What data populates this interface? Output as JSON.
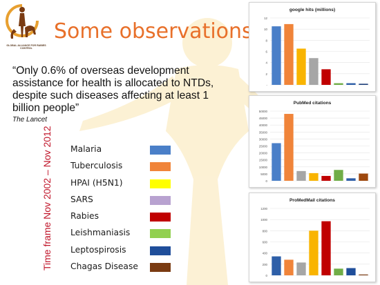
{
  "slide": {
    "title": "Some observations",
    "quote": "“Only 0.6% of overseas development assistance for health is allocated to NTDs, despite such diseases affecting at least 1 billion people”",
    "source": "The Lancet",
    "timeframe": "Time frame Nov 2002 – Nov 2012",
    "logo_text": "GLOBAL ALLIANCE FOR RABIES CONTROL"
  },
  "legend": [
    {
      "label": "Malaria",
      "color": "#4a7fc8"
    },
    {
      "label": "Tuberculosis",
      "color": "#f0843a"
    },
    {
      "label": "HPAI (H5N1)",
      "color": "#ffff00"
    },
    {
      "label": "SARS",
      "color": "#b8a2d0"
    },
    {
      "label": "Rabies",
      "color": "#c00000"
    },
    {
      "label": "Leishmaniasis",
      "color": "#92d050"
    },
    {
      "label": "Leptospirosis",
      "color": "#1f4e9a"
    },
    {
      "label": "Chagas Disease",
      "color": "#7a3b12"
    }
  ],
  "chart_data": [
    {
      "type": "bar",
      "title": "google hits (millions)",
      "categories": [
        "Malaria",
        "Tuberculosis",
        "HPAI (H5N1)",
        "SARS",
        "Rabies",
        "Leishmaniasis",
        "Leptospirosis",
        "Chagas Disease"
      ],
      "values": [
        10.5,
        10.9,
        6.5,
        4.8,
        2.8,
        0.3,
        0.3,
        0.2
      ],
      "colors": [
        "#4a7fc8",
        "#f0843a",
        "#f9b400",
        "#a6a6a6",
        "#c00000",
        "#70ad47",
        "#2e5fa8",
        "#1f3f7a"
      ],
      "yticks": [
        "-",
        "2",
        "4",
        "6",
        "8",
        "10",
        "12"
      ],
      "ylim": [
        0,
        12
      ],
      "grid": true
    },
    {
      "type": "bar",
      "title": "PubMed citations",
      "categories": [
        "Malaria",
        "Tuberculosis",
        "HPAI (H5N1)",
        "SARS",
        "Rabies",
        "Leishmaniasis",
        "Leptospirosis",
        "Chagas Disease"
      ],
      "values": [
        27000,
        48000,
        7000,
        5500,
        3500,
        7800,
        1800,
        5200
      ],
      "colors": [
        "#4a7fc8",
        "#f0843a",
        "#a6a6a6",
        "#f9b400",
        "#c00000",
        "#70ad47",
        "#2e5fa8",
        "#9e480e"
      ],
      "yticks": [
        "0",
        "5000",
        "10000",
        "15000",
        "20000",
        "25000",
        "30000",
        "35000",
        "40000",
        "45000",
        "50000"
      ],
      "ylim": [
        0,
        50000
      ],
      "grid": true
    },
    {
      "type": "bar",
      "title": "ProMedMail citations",
      "categories": [
        "Malaria",
        "Tuberculosis",
        "HPAI (H5N1)",
        "SARS",
        "Rabies",
        "Leishmaniasis",
        "Leptospirosis",
        "Chagas Disease"
      ],
      "values": [
        340,
        280,
        230,
        800,
        970,
        120,
        130,
        15
      ],
      "colors": [
        "#2e5fa8",
        "#f0843a",
        "#a6a6a6",
        "#f9b400",
        "#c00000",
        "#70ad47",
        "#1f4e9a",
        "#7a3b12"
      ],
      "yticks": [
        "0",
        "200",
        "400",
        "600",
        "800",
        "1000",
        "1200"
      ],
      "ylim": [
        0,
        1200
      ],
      "grid": true
    }
  ]
}
